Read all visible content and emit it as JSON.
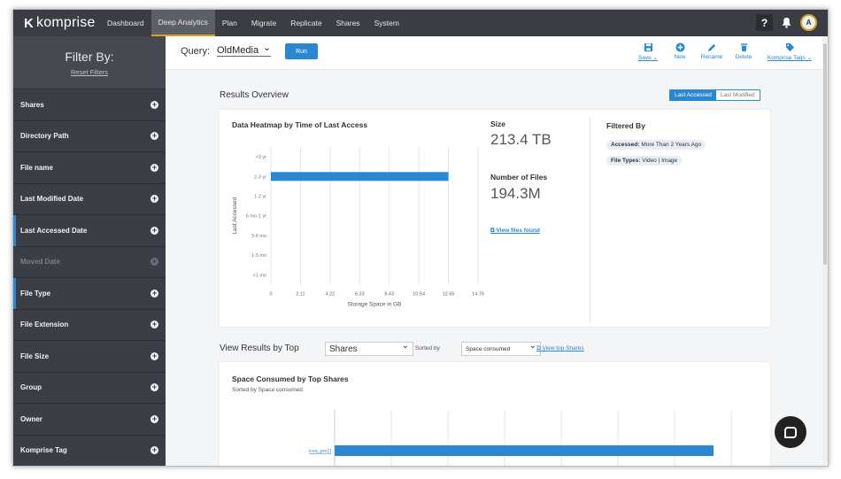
{
  "app": {
    "logo_text": "komprise",
    "nav": [
      "Dashboard",
      "Deep Analytics",
      "Plan",
      "Migrate",
      "Replicate",
      "Shares",
      "System"
    ],
    "active_nav": "Deep Analytics",
    "help_icon": "?",
    "avatar_initial": "A"
  },
  "sidebar": {
    "title": "Filter By:",
    "reset": "Reset Filters",
    "items": [
      {
        "label": "Shares"
      },
      {
        "label": "Directory Path"
      },
      {
        "label": "File name"
      },
      {
        "label": "Last Modified Date"
      },
      {
        "label": "Last Accessed Date"
      },
      {
        "label": "Moved Date"
      },
      {
        "label": "File Type"
      },
      {
        "label": "File Extension"
      },
      {
        "label": "File Size"
      },
      {
        "label": "Group"
      },
      {
        "label": "Owner"
      },
      {
        "label": "Komprise Tag"
      }
    ]
  },
  "query": {
    "label": "Query:",
    "value": "OldMedia",
    "run": "Run"
  },
  "toolbar": {
    "save": "Save",
    "new": "New",
    "rename": "Rename",
    "delete": "Delete",
    "tags": "Komprise Tags"
  },
  "results": {
    "heading": "Results Overview",
    "toggle_on": "Last Accessed",
    "toggle_off": "Last Modified",
    "heatmap_title": "Data Heatmap by Time of Last Access",
    "size_label": "Size",
    "size_value": "213.4 TB",
    "files_label": "Number of Files",
    "files_value": "194.3M",
    "view_files": "View files found",
    "filtered_by": "Filtered By",
    "chip1_key": "Accessed:",
    "chip1_val": " More Than 2 Years Ago",
    "chip2_key": "File Types:",
    "chip2_val": " Video | Image"
  },
  "top": {
    "heading": "View Results by Top",
    "select_value": "Shares",
    "sorted_by_label": "Sorted by",
    "sort_value": "Space consumed",
    "view_link": "View top Shares",
    "card_title": "Space Consumed by Top Shares",
    "card_sub": "Sorted by Space consumed"
  },
  "chart_data": [
    {
      "type": "bar",
      "orientation": "horizontal",
      "categories": [
        ">3 yr",
        "2-3 yr",
        "1-2 yr",
        "6 mo-1 yr",
        "3-6 mo",
        "1-3 mo",
        "<1 mo"
      ],
      "values": [
        0,
        12.65,
        0,
        0,
        0,
        0,
        0
      ],
      "xlabel": "Storage Space in GB",
      "ylabel": "Last Accessed",
      "xticks": [
        "0",
        "2.11",
        "4.22",
        "6.33",
        "8.43",
        "10.54",
        "12.65",
        "14.76"
      ],
      "xlim": [
        0,
        14.76
      ],
      "color": "#2a88d2"
    },
    {
      "type": "bar",
      "orientation": "horizontal",
      "categories": [
        "/cvs_pro1]"
      ],
      "values": [
        1
      ],
      "color": "#2a88d2"
    }
  ]
}
